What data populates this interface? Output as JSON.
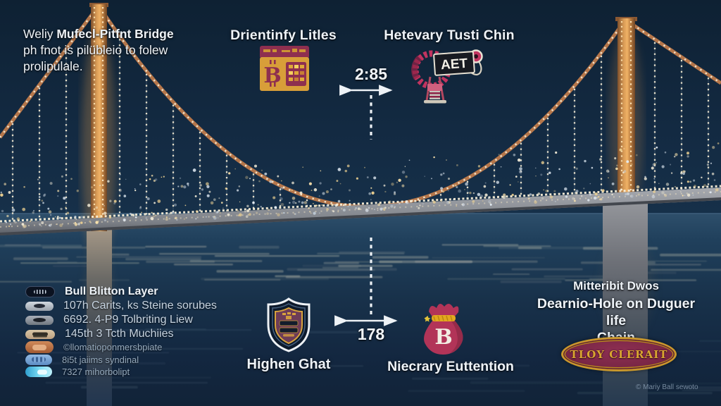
{
  "intro": {
    "lead": "Weliy ",
    "title": "Mufecl-Pitfnt Bridge",
    "line2": "ph fnot is pilübleio to folew",
    "line3": "prolipulale."
  },
  "top": {
    "left_title": "Drientinfy Litles",
    "right_title": "Hetevary Tusti Chin",
    "measure_top": "2:85",
    "measure_bottom": "178",
    "calendar_letter": "B",
    "magnifier_label": "AET"
  },
  "bottom_left": {
    "items": [
      {
        "label": "Bull Blitton Layer"
      },
      {
        "label": "107h Carits, ks Steine sorubes"
      },
      {
        "label": "6692. 4-P9 Tolbriting Liew"
      },
      {
        "label": "145th 3 Tcth Muchiies"
      },
      {
        "label": "©llomatioponmersbpiate"
      },
      {
        "label": "8i5t jaiims syndinal"
      },
      {
        "label": "7327 mihorbolipt"
      }
    ]
  },
  "bottom_center": {
    "shield_label": "Highen Ghat",
    "bag_label": "Niecrary Euttention",
    "bag_letter": "B"
  },
  "bottom_right": {
    "line1": "Mitteribit Dwos",
    "line2": "Dearnio-Hole on Duguer life",
    "line3": "Chain",
    "badge": "TLOY CLERAIT",
    "credit": "© Mariy Ball sewoto"
  },
  "colors": {
    "accent_maroon": "#8e2f4f",
    "accent_gold": "#dfa838",
    "accent_crimson": "#b23458",
    "cable_orange": "#b5764a",
    "sky": "#14293f",
    "water": "#1c3850",
    "light_warm": "#f4ebd4"
  }
}
